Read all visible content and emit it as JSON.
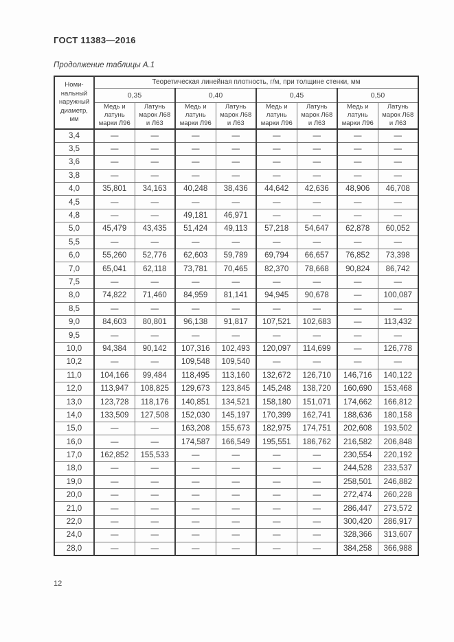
{
  "page": {
    "standard_number": "ГОСТ 11383—2016",
    "table_caption": "Продолжение таблицы А.1",
    "page_number": "12"
  },
  "table": {
    "diameter_header": "Номи-\nнальный\nнаружный\nдиаметр,\nмм",
    "density_header": "Теоретическая линейная плотность, г/м, при толщине стенки, мм",
    "thickness_values": [
      "0,35",
      "0,40",
      "0,45",
      "0,50"
    ],
    "material_headers": {
      "copper": "Медь и\nлатунь\nмарки Л96",
      "brass": "Латунь\nмарок Л68\nи Л63"
    },
    "rows": [
      {
        "d": "3,4",
        "v": [
          "—",
          "—",
          "—",
          "—",
          "—",
          "—",
          "—",
          "—"
        ]
      },
      {
        "d": "3,5",
        "v": [
          "—",
          "—",
          "—",
          "—",
          "—",
          "—",
          "—",
          "—"
        ]
      },
      {
        "d": "3,6",
        "v": [
          "—",
          "—",
          "—",
          "—",
          "—",
          "—",
          "—",
          "—"
        ]
      },
      {
        "d": "3,8",
        "v": [
          "—",
          "—",
          "—",
          "—",
          "—",
          "—",
          "—",
          "—"
        ]
      },
      {
        "d": "4,0",
        "v": [
          "35,801",
          "34,163",
          "40,248",
          "38,436",
          "44,642",
          "42,636",
          "48,906",
          "46,708"
        ]
      },
      {
        "d": "4,5",
        "v": [
          "—",
          "—",
          "—",
          "—",
          "—",
          "—",
          "—",
          "—"
        ]
      },
      {
        "d": "4,8",
        "v": [
          "—",
          "—",
          "49,181",
          "46,971",
          "—",
          "—",
          "—",
          "—"
        ]
      },
      {
        "d": "5,0",
        "v": [
          "45,479",
          "43,435",
          "51,424",
          "49,113",
          "57,218",
          "54,647",
          "62,878",
          "60,052"
        ]
      },
      {
        "d": "5,5",
        "v": [
          "—",
          "—",
          "—",
          "—",
          "—",
          "—",
          "—",
          "—"
        ]
      },
      {
        "d": "6,0",
        "v": [
          "55,260",
          "52,776",
          "62,603",
          "59,789",
          "69,794",
          "66,657",
          "76,852",
          "73,398"
        ]
      },
      {
        "d": "7,0",
        "v": [
          "65,041",
          "62,118",
          "73,781",
          "70,465",
          "82,370",
          "78,668",
          "90,824",
          "86,742"
        ]
      },
      {
        "d": "7,5",
        "v": [
          "—",
          "—",
          "—",
          "—",
          "—",
          "—",
          "—",
          "—"
        ]
      },
      {
        "d": "8,0",
        "v": [
          "74,822",
          "71,460",
          "84,959",
          "81,141",
          "94,945",
          "90,678",
          "—",
          "100,087"
        ]
      },
      {
        "d": "8,5",
        "v": [
          "—",
          "—",
          "—",
          "—",
          "—",
          "—",
          "—",
          "—"
        ]
      },
      {
        "d": "9,0",
        "v": [
          "84,603",
          "80,801",
          "96,138",
          "91,817",
          "107,521",
          "102,683",
          "—",
          "113,432"
        ]
      },
      {
        "d": "9,5",
        "v": [
          "—",
          "—",
          "—",
          "—",
          "—",
          "—",
          "—",
          "—"
        ]
      },
      {
        "d": "10,0",
        "v": [
          "94,384",
          "90,142",
          "107,316",
          "102,493",
          "120,097",
          "114,699",
          "—",
          "126,778"
        ]
      },
      {
        "d": "10,2",
        "v": [
          "—",
          "—",
          "109,548",
          "109,540",
          "—",
          "—",
          "—",
          "—"
        ]
      },
      {
        "d": "11,0",
        "v": [
          "104,166",
          "99,484",
          "118,495",
          "113,160",
          "132,672",
          "126,710",
          "146,716",
          "140,122"
        ]
      },
      {
        "d": "12,0",
        "v": [
          "113,947",
          "108,825",
          "129,673",
          "123,845",
          "145,248",
          "138,720",
          "160,690",
          "153,468"
        ]
      },
      {
        "d": "13,0",
        "v": [
          "123,728",
          "118,176",
          "140,851",
          "134,521",
          "158,180",
          "151,071",
          "174,662",
          "166,812"
        ]
      },
      {
        "d": "14,0",
        "v": [
          "133,509",
          "127,508",
          "152,030",
          "145,197",
          "170,399",
          "162,741",
          "188,636",
          "180,158"
        ]
      },
      {
        "d": "15,0",
        "v": [
          "—",
          "—",
          "163,208",
          "155,673",
          "182,975",
          "174,751",
          "202,608",
          "193,502"
        ]
      },
      {
        "d": "16,0",
        "v": [
          "—",
          "—",
          "174,587",
          "166,549",
          "195,551",
          "186,762",
          "216,582",
          "206,848"
        ]
      },
      {
        "d": "17,0",
        "v": [
          "162,852",
          "155,533",
          "—",
          "—",
          "—",
          "—",
          "230,554",
          "220,192"
        ]
      },
      {
        "d": "18,0",
        "v": [
          "—",
          "—",
          "—",
          "—",
          "—",
          "—",
          "244,528",
          "233,537"
        ]
      },
      {
        "d": "19,0",
        "v": [
          "—",
          "—",
          "—",
          "—",
          "—",
          "—",
          "258,501",
          "246,882"
        ]
      },
      {
        "d": "20,0",
        "v": [
          "—",
          "—",
          "—",
          "—",
          "—",
          "—",
          "272,474",
          "260,228"
        ]
      },
      {
        "d": "21,0",
        "v": [
          "—",
          "—",
          "—",
          "—",
          "—",
          "—",
          "286,447",
          "273,572"
        ]
      },
      {
        "d": "22,0",
        "v": [
          "—",
          "—",
          "—",
          "—",
          "—",
          "—",
          "300,420",
          "286,917"
        ]
      },
      {
        "d": "24,0",
        "v": [
          "—",
          "—",
          "—",
          "—",
          "—",
          "—",
          "328,366",
          "313,607"
        ]
      },
      {
        "d": "28,0",
        "v": [
          "—",
          "—",
          "—",
          "—",
          "—",
          "—",
          "384,258",
          "366,988"
        ]
      }
    ]
  }
}
